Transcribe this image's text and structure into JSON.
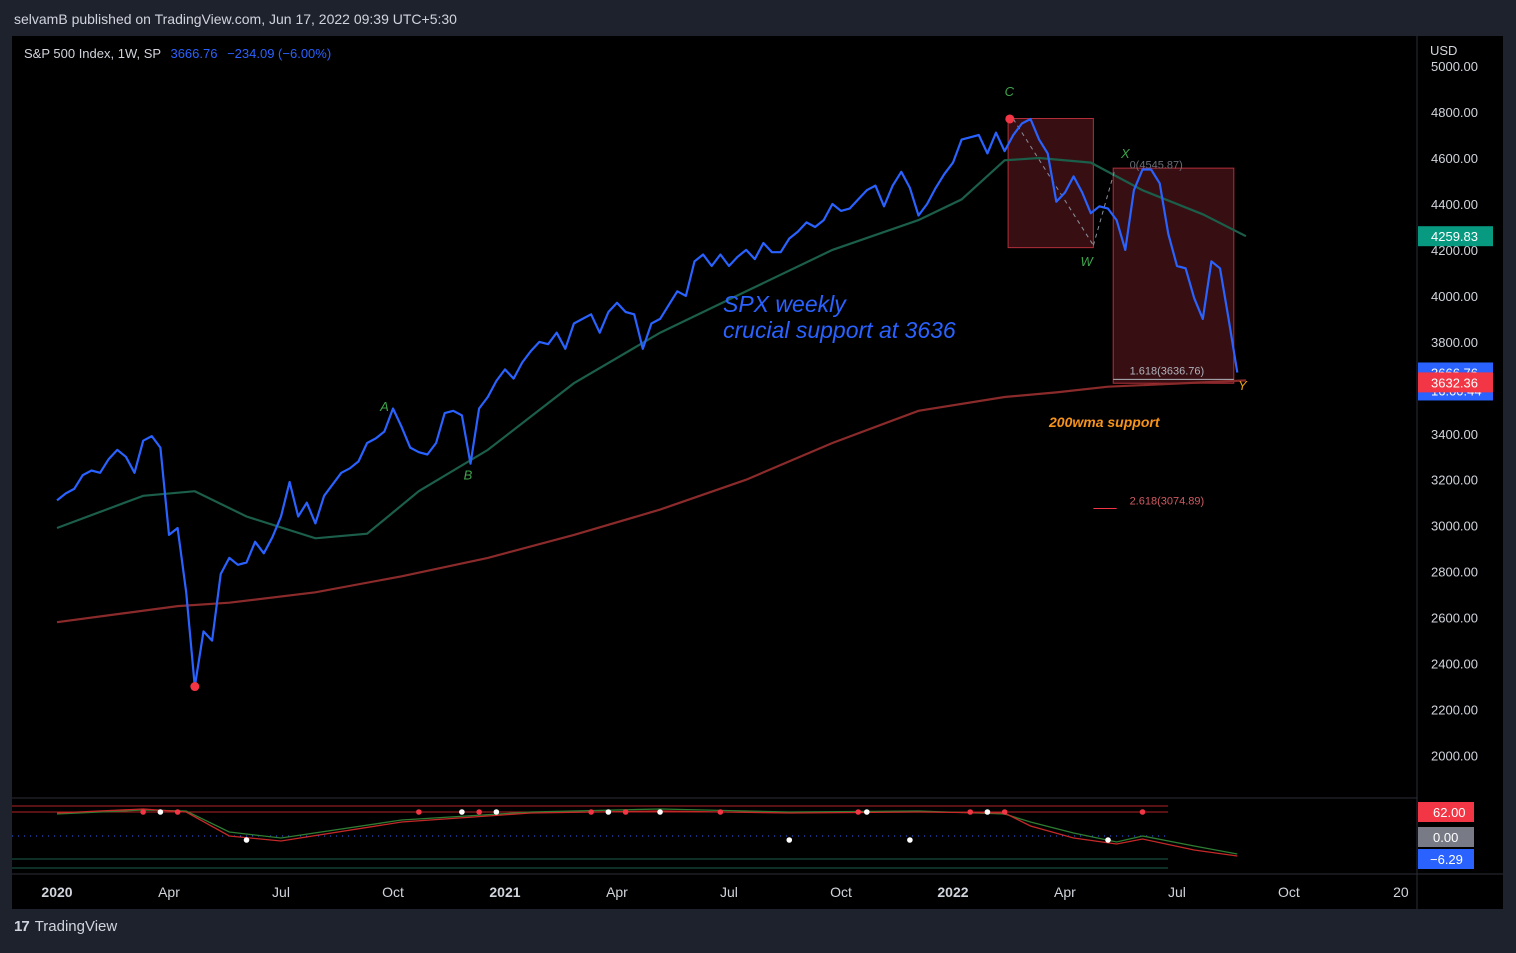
{
  "header": {
    "publish_line": "selvamB published on TradingView.com, Jun 17, 2022 09:39 UTC+5:30"
  },
  "legend": {
    "symbol": "S&P 500 Index, 1W, SP",
    "last": "3666.76",
    "change": "−234.09 (−6.00%)"
  },
  "footer": {
    "brand": "TradingView"
  },
  "colors": {
    "price": "#2962ff",
    "ma_short": "#1b5e4a",
    "ma_long": "#8b2a2a",
    "box": "#4a1418",
    "box_border": "#b22f3a"
  },
  "chart_data": {
    "type": "line",
    "currency": "USD",
    "ylim": [
      1850,
      5050
    ],
    "y_ticks": [
      2000,
      2200,
      2400,
      2600,
      2800,
      3000,
      3200,
      3400,
      3600,
      3800,
      4000,
      4200,
      4400,
      4600,
      4800,
      5000
    ],
    "y_tick_labels": [
      "2000.00",
      "2200.00",
      "2400.00",
      "2600.00",
      "2800.00",
      "3000.00",
      "3200.00",
      "3400.00",
      "3600.00",
      "3800.00",
      "4000.00",
      "4200.00",
      "4400.00",
      "4600.00",
      "4800.00",
      "5000.00"
    ],
    "x_ticks": [
      {
        "label": "2020",
        "week": 0,
        "bold": true
      },
      {
        "label": "Apr",
        "week": 13
      },
      {
        "label": "Jul",
        "week": 26
      },
      {
        "label": "Oct",
        "week": 39
      },
      {
        "label": "2021",
        "week": 52,
        "bold": true
      },
      {
        "label": "Apr",
        "week": 65
      },
      {
        "label": "Jul",
        "week": 78
      },
      {
        "label": "Oct",
        "week": 91
      },
      {
        "label": "2022",
        "week": 104,
        "bold": true
      },
      {
        "label": "Apr",
        "week": 117
      },
      {
        "label": "Jul",
        "week": 130
      },
      {
        "label": "Oct",
        "week": 143
      },
      {
        "label": "20",
        "week": 156
      }
    ],
    "series": [
      {
        "name": "S&P 500 Index",
        "role": "price",
        "values": [
          3110,
          3140,
          3160,
          3220,
          3240,
          3230,
          3290,
          3330,
          3300,
          3230,
          3370,
          3390,
          3340,
          2960,
          2990,
          2710,
          2300,
          2540,
          2500,
          2790,
          2860,
          2830,
          2840,
          2930,
          2880,
          2950,
          3040,
          3190,
          3040,
          3100,
          3010,
          3130,
          3180,
          3230,
          3250,
          3280,
          3360,
          3380,
          3410,
          3510,
          3430,
          3340,
          3320,
          3310,
          3360,
          3490,
          3500,
          3480,
          3270,
          3510,
          3560,
          3630,
          3680,
          3640,
          3710,
          3760,
          3800,
          3790,
          3840,
          3770,
          3880,
          3900,
          3920,
          3840,
          3930,
          3970,
          3930,
          3920,
          3770,
          3880,
          3900,
          3960,
          4020,
          4000,
          4150,
          4180,
          4130,
          4180,
          4130,
          4170,
          4200,
          4160,
          4230,
          4190,
          4190,
          4250,
          4280,
          4320,
          4300,
          4330,
          4400,
          4370,
          4380,
          4420,
          4460,
          4480,
          4390,
          4480,
          4540,
          4470,
          4350,
          4400,
          4470,
          4530,
          4580,
          4680,
          4690,
          4700,
          4620,
          4710,
          4630,
          4700,
          4750,
          4770,
          4680,
          4620,
          4410,
          4450,
          4520,
          4450,
          4360,
          4390,
          4380,
          4330,
          4200,
          4460,
          4550,
          4550,
          4490,
          4270,
          4130,
          4120,
          3990,
          3900,
          4150,
          4120,
          3900,
          3666.76
        ]
      },
      {
        "name": "MA short",
        "role": "ma_short",
        "points": [
          [
            0,
            2990
          ],
          [
            10,
            3130
          ],
          [
            16,
            3150
          ],
          [
            22,
            3040
          ],
          [
            30,
            2945
          ],
          [
            36,
            2965
          ],
          [
            42,
            3150
          ],
          [
            50,
            3330
          ],
          [
            60,
            3620
          ],
          [
            70,
            3840
          ],
          [
            80,
            4020
          ],
          [
            90,
            4200
          ],
          [
            100,
            4330
          ],
          [
            105,
            4420
          ],
          [
            110,
            4590
          ],
          [
            114,
            4600
          ],
          [
            120,
            4580
          ],
          [
            126,
            4460
          ],
          [
            133,
            4355
          ],
          [
            138,
            4260
          ]
        ]
      },
      {
        "name": "MA long",
        "role": "ma_long",
        "points": [
          [
            0,
            2580
          ],
          [
            8,
            2620
          ],
          [
            14,
            2650
          ],
          [
            20,
            2665
          ],
          [
            30,
            2710
          ],
          [
            40,
            2780
          ],
          [
            50,
            2860
          ],
          [
            60,
            2960
          ],
          [
            70,
            3070
          ],
          [
            80,
            3200
          ],
          [
            90,
            3360
          ],
          [
            100,
            3500
          ],
          [
            110,
            3560
          ],
          [
            116,
            3580
          ],
          [
            122,
            3605
          ],
          [
            138,
            3632.36
          ]
        ]
      }
    ],
    "annotations": {
      "wave_labels": [
        {
          "text": "C"
        },
        {
          "text": "X"
        },
        {
          "text": "W"
        },
        {
          "text": "Y"
        },
        {
          "text": "A"
        },
        {
          "text": "B"
        }
      ],
      "text_note": [
        "SPX weekly",
        "crucial support at 3636"
      ],
      "support_note": "200wma support",
      "fib_labels": [
        "0(4545.87)",
        "1.618(3636.76)",
        "2.618(3074.89)"
      ],
      "fib_values": [
        4545.87,
        3636.76,
        3074.89
      ]
    },
    "price_badges": [
      {
        "value": "4259.83",
        "color": "#089981",
        "y": 4259.83
      },
      {
        "value": "3666.76",
        "sub": "16:00:44",
        "color": "#2962ff",
        "y": 3666.76
      },
      {
        "value": "3632.36",
        "color": "#f23645",
        "y": 3632.36
      }
    ],
    "oscillator": {
      "levels": [
        62.0,
        0.0,
        -6.29
      ],
      "labels": [
        "62.00",
        "0.00",
        "−6.29"
      ]
    }
  }
}
